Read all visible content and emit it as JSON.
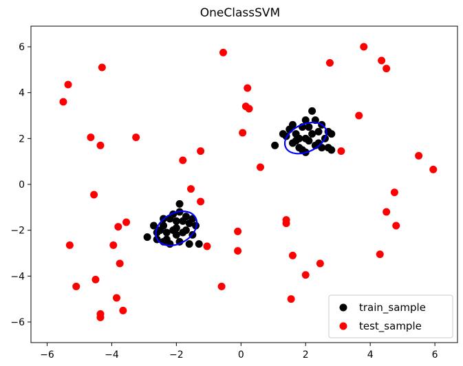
{
  "chart_data": {
    "type": "scatter",
    "title": "OneClassSVM",
    "xlabel": "",
    "ylabel": "",
    "xlim": [
      -6.5,
      6.7
    ],
    "ylim": [
      -6.9,
      6.9
    ],
    "xticks": [
      -6,
      -4,
      -2,
      0,
      2,
      4,
      6
    ],
    "yticks": [
      -6,
      -4,
      -2,
      0,
      2,
      4,
      6
    ],
    "xtick_labels": [
      "−6",
      "−4",
      "−2",
      "0",
      "2",
      "4",
      "6"
    ],
    "ytick_labels": [
      "−6",
      "−4",
      "−2",
      "0",
      "2",
      "4",
      "6"
    ],
    "grid": false,
    "legend_position": "bottom-right",
    "colors": {
      "train": "#000000",
      "test": "#ff0000",
      "contour": "#0000ff"
    },
    "series": [
      {
        "name": "train_sample",
        "color": "#000000",
        "points": [
          [
            -2.9,
            -2.3
          ],
          [
            -2.4,
            -1.8
          ],
          [
            -2.7,
            -1.8
          ],
          [
            -1.9,
            -0.85
          ],
          [
            -1.6,
            -2.6
          ],
          [
            -2.2,
            -1.5
          ],
          [
            -1.7,
            -2.0
          ],
          [
            -2.0,
            -2.2
          ],
          [
            -2.3,
            -2.1
          ],
          [
            -1.8,
            -1.6
          ],
          [
            -2.5,
            -2.0
          ],
          [
            -1.5,
            -2.2
          ],
          [
            -2.1,
            -1.3
          ],
          [
            -1.9,
            -2.5
          ],
          [
            -2.6,
            -2.4
          ],
          [
            -1.4,
            -1.8
          ],
          [
            -2.0,
            -1.9
          ],
          [
            -2.2,
            -2.6
          ],
          [
            -1.7,
            -1.4
          ],
          [
            -2.4,
            -1.5
          ],
          [
            -2.0,
            -1.6
          ],
          [
            -1.6,
            -1.7
          ],
          [
            -2.3,
            -2.4
          ],
          [
            -1.8,
            -2.1
          ],
          [
            -2.1,
            -2.0
          ],
          [
            -2.6,
            -2.1
          ],
          [
            -1.5,
            -1.5
          ],
          [
            -1.9,
            -1.2
          ],
          [
            -2.4,
            -2.5
          ],
          [
            -1.3,
            -2.6
          ],
          [
            1.05,
            1.7
          ],
          [
            2.2,
            3.2
          ],
          [
            2.7,
            1.6
          ],
          [
            2.8,
            1.5
          ],
          [
            1.5,
            2.4
          ],
          [
            1.6,
            1.8
          ],
          [
            2.0,
            2.8
          ],
          [
            2.4,
            2.3
          ],
          [
            1.8,
            1.6
          ],
          [
            2.1,
            1.9
          ],
          [
            2.5,
            2.6
          ],
          [
            1.7,
            2.2
          ],
          [
            2.3,
            1.7
          ],
          [
            1.9,
            2.5
          ],
          [
            2.6,
            2.0
          ],
          [
            1.4,
            2.1
          ],
          [
            2.2,
            2.2
          ],
          [
            1.9,
            1.5
          ],
          [
            2.0,
            2.0
          ],
          [
            1.6,
            2.6
          ],
          [
            2.7,
            2.3
          ],
          [
            2.4,
            1.8
          ],
          [
            1.8,
            2.0
          ],
          [
            2.1,
            2.5
          ],
          [
            1.3,
            2.2
          ],
          [
            2.5,
            1.6
          ],
          [
            2.0,
            1.4
          ],
          [
            1.7,
            1.9
          ],
          [
            2.3,
            2.8
          ],
          [
            2.8,
            2.2
          ]
        ]
      },
      {
        "name": "test_sample",
        "color": "#ff0000",
        "points": [
          [
            -5.5,
            3.6
          ],
          [
            -5.35,
            4.35
          ],
          [
            -4.3,
            5.1
          ],
          [
            -4.65,
            2.05
          ],
          [
            -4.35,
            1.7
          ],
          [
            -3.25,
            2.05
          ],
          [
            -1.8,
            1.05
          ],
          [
            -1.25,
            1.45
          ],
          [
            -0.55,
            5.75
          ],
          [
            0.2,
            4.2
          ],
          [
            0.15,
            3.4
          ],
          [
            0.25,
            3.3
          ],
          [
            0.05,
            2.25
          ],
          [
            0.6,
            0.75
          ],
          [
            -1.55,
            -0.2
          ],
          [
            -1.25,
            -0.75
          ],
          [
            -3.55,
            -1.65
          ],
          [
            -3.8,
            -1.85
          ],
          [
            -4.55,
            -0.45
          ],
          [
            -3.95,
            -2.65
          ],
          [
            -5.3,
            -2.65
          ],
          [
            -3.75,
            -3.45
          ],
          [
            -4.5,
            -4.15
          ],
          [
            -5.1,
            -4.45
          ],
          [
            -3.85,
            -4.95
          ],
          [
            -3.65,
            -5.5
          ],
          [
            -4.35,
            -5.65
          ],
          [
            -4.35,
            -5.8
          ],
          [
            -1.05,
            -2.7
          ],
          [
            -0.6,
            -4.45
          ],
          [
            -0.1,
            -2.05
          ],
          [
            -0.1,
            -2.9
          ],
          [
            1.4,
            -1.55
          ],
          [
            1.4,
            -1.7
          ],
          [
            1.6,
            -3.1
          ],
          [
            2.0,
            -3.95
          ],
          [
            2.45,
            -3.45
          ],
          [
            1.55,
            -5.0
          ],
          [
            2.75,
            5.3
          ],
          [
            3.8,
            6.0
          ],
          [
            4.35,
            5.4
          ],
          [
            4.5,
            5.05
          ],
          [
            3.65,
            3.0
          ],
          [
            3.1,
            1.45
          ],
          [
            5.5,
            1.25
          ],
          [
            5.95,
            0.65
          ],
          [
            4.75,
            -0.35
          ],
          [
            4.5,
            -1.2
          ],
          [
            4.8,
            -1.8
          ],
          [
            4.3,
            -3.05
          ]
        ]
      }
    ],
    "contours": [
      {
        "name": "decision-boundary-1",
        "cx": -2.0,
        "cy": -1.92,
        "rx": 0.68,
        "ry": 0.66,
        "angle": -30
      },
      {
        "name": "decision-boundary-2",
        "cx": 2.0,
        "cy": 2.02,
        "rx": 0.68,
        "ry": 0.6,
        "angle": -25
      }
    ]
  }
}
